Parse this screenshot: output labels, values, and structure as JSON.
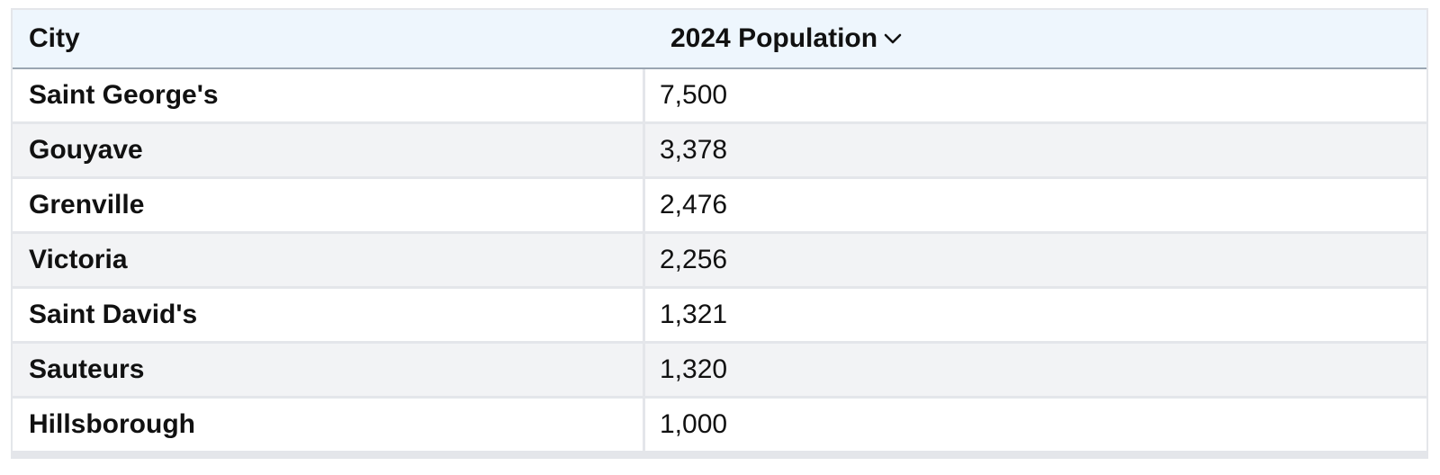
{
  "table": {
    "columns": {
      "city": "City",
      "population": "2024 Population"
    },
    "sort_icon": "chevron-down-icon",
    "rows": [
      {
        "city": "Saint George's",
        "population": "7,500"
      },
      {
        "city": "Gouyave",
        "population": "3,378"
      },
      {
        "city": "Grenville",
        "population": "2,476"
      },
      {
        "city": "Victoria",
        "population": "2,256"
      },
      {
        "city": "Saint David's",
        "population": "1,321"
      },
      {
        "city": "Sauteurs",
        "population": "1,320"
      },
      {
        "city": "Hillsborough",
        "population": "1,000"
      }
    ]
  },
  "colors": {
    "header_bg": "#eef6fd",
    "row_alt_bg": "#f2f3f5",
    "border": "#e4e6ea",
    "header_border": "#9aa6b2"
  }
}
